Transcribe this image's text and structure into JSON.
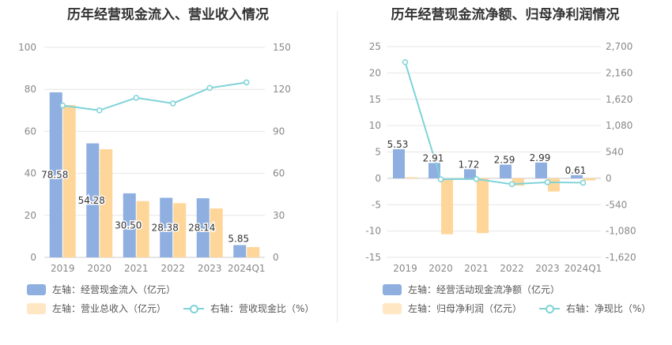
{
  "colors": {
    "bar1": "#8eafe0",
    "bar2": "#ffd699",
    "line": "#7fd3d8",
    "grid": "#e6e6e6",
    "axis_text": "#888888"
  },
  "chart_data": [
    {
      "title": "历年经营现金流入、营业收入情况",
      "type": "bar",
      "categories": [
        "2019",
        "2020",
        "2021",
        "2022",
        "2023",
        "2024Q1"
      ],
      "y_left": {
        "ylim": [
          0,
          100
        ],
        "ticks": [
          "0",
          "20",
          "40",
          "60",
          "80",
          "100"
        ]
      },
      "y_right": {
        "ylim": [
          0,
          150
        ],
        "ticks": [
          "0",
          "30",
          "60",
          "90",
          "120",
          "150"
        ]
      },
      "series": [
        {
          "name": "左轴：经营现金流入（亿元）",
          "type": "bar",
          "axis": "left",
          "values": [
            78.58,
            54.28,
            30.5,
            28.38,
            28.14,
            5.85
          ],
          "labels": [
            "78.58",
            "54.28",
            "30.50",
            "28.38",
            "28.14",
            "5.85"
          ]
        },
        {
          "name": "左轴：营业总收入（亿元）",
          "type": "bar",
          "axis": "left",
          "values": [
            72.5,
            51.5,
            26.8,
            25.8,
            23.3,
            4.9
          ]
        },
        {
          "name": "右轴：营收现金比（%）",
          "type": "line",
          "axis": "right",
          "values": [
            108.5,
            105.0,
            114.0,
            110.0,
            121.0,
            125.0
          ]
        }
      ]
    },
    {
      "title": "历年经营现金流净额、归母净利润情况",
      "type": "bar",
      "categories": [
        "2019",
        "2020",
        "2021",
        "2022",
        "2023",
        "2024Q1"
      ],
      "y_left": {
        "ylim": [
          -15,
          25
        ],
        "ticks": [
          "-15",
          "-10",
          "-5",
          "0",
          "5",
          "10",
          "15",
          "20",
          "25"
        ]
      },
      "y_right": {
        "ylim": [
          -1620,
          2700
        ],
        "ticks": [
          "-1,620",
          "-1,080",
          "-540",
          "0",
          "540",
          "1,080",
          "1,620",
          "2,160",
          "2,700"
        ]
      },
      "series": [
        {
          "name": "左轴：经营活动现金流净额（亿元）",
          "type": "bar",
          "axis": "left",
          "values": [
            5.53,
            2.91,
            1.72,
            2.59,
            2.99,
            0.61
          ],
          "labels": [
            "5.53",
            "2.91",
            "1.72",
            "2.59",
            "2.99",
            "0.61"
          ]
        },
        {
          "name": "左轴：归母净利润（亿元）",
          "type": "bar",
          "axis": "left",
          "values": [
            0.2,
            -10.6,
            -10.4,
            -1.4,
            -2.5,
            -0.4
          ]
        },
        {
          "name": "右轴：净现比（%）",
          "type": "line",
          "axis": "right",
          "values": [
            2380,
            -20,
            -15,
            -120,
            -80,
            -90
          ]
        }
      ]
    }
  ]
}
